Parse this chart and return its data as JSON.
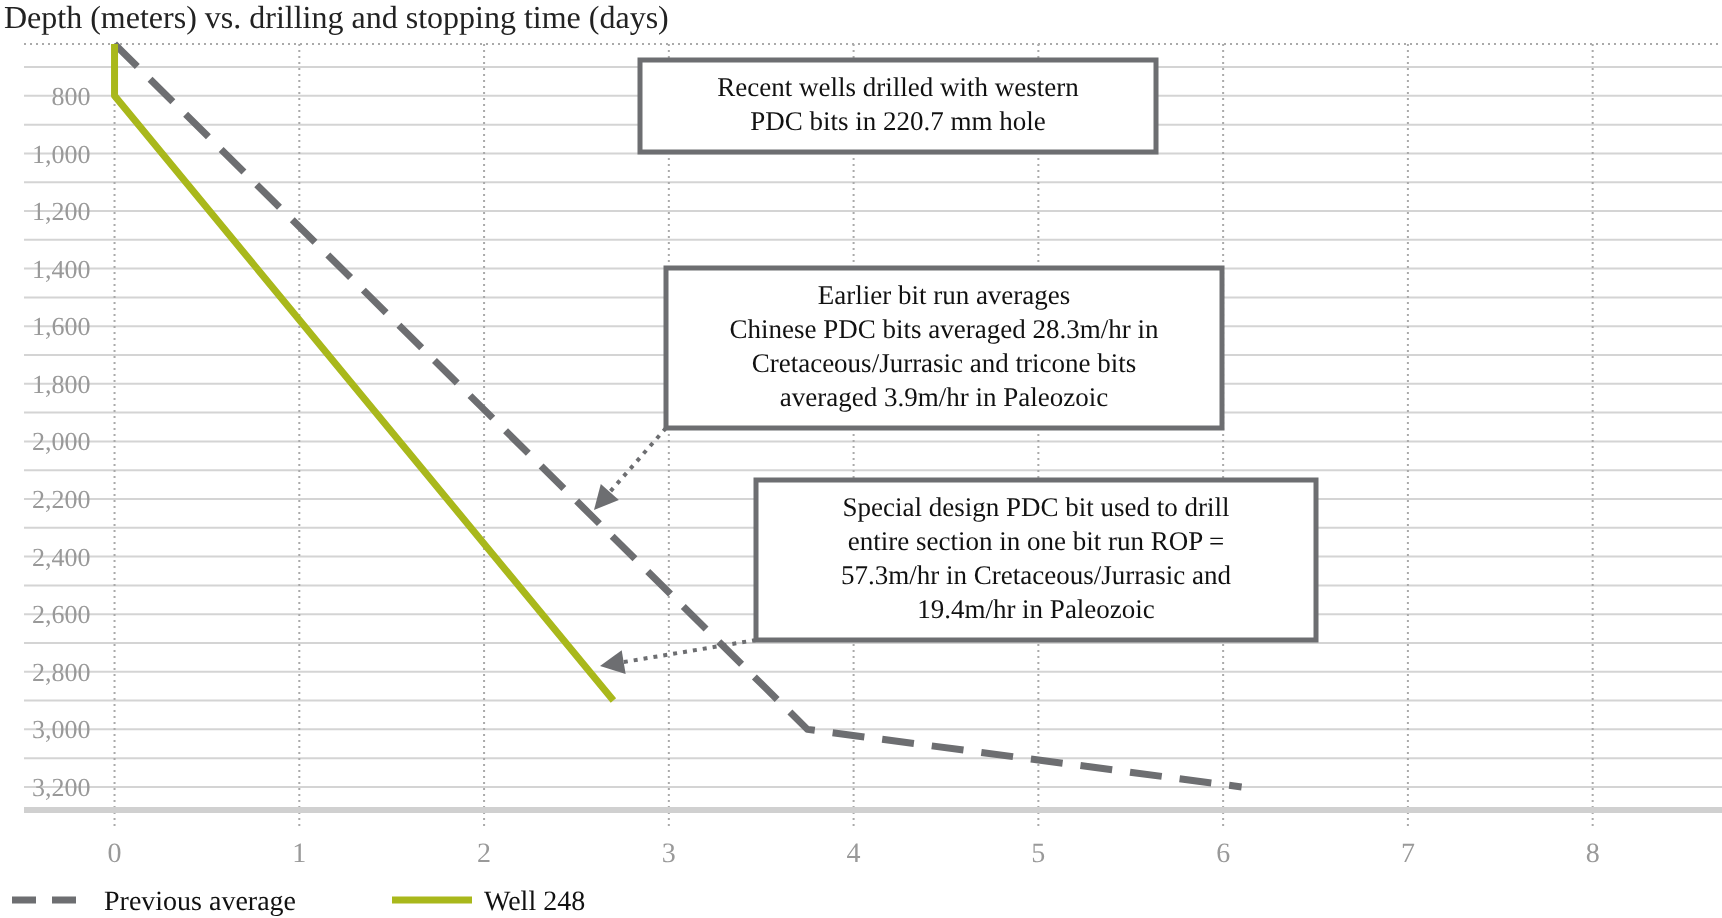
{
  "chart_data": {
    "type": "line",
    "title": "Depth (meters) vs. drilling and stopping time (days)",
    "xlim": [
      -0.49,
      8.7
    ],
    "xticks": [
      0,
      1,
      2,
      3,
      4,
      5,
      6,
      7,
      8
    ],
    "ylim": [
      3280,
      620
    ],
    "yticks": [
      {
        "value": 700,
        "label": null
      },
      800,
      {
        "value": 900,
        "label": null
      },
      {
        "value": 1000,
        "label": "1,000"
      },
      {
        "value": 1100,
        "label": null
      },
      {
        "value": 1200,
        "label": "1,200"
      },
      {
        "value": 1300,
        "label": null
      },
      {
        "value": 1400,
        "label": "1,400"
      },
      {
        "value": 1500,
        "label": null
      },
      {
        "value": 1600,
        "label": "1,600"
      },
      {
        "value": 1700,
        "label": null
      },
      {
        "value": 1800,
        "label": "1,800"
      },
      {
        "value": 1900,
        "label": null
      },
      {
        "value": 2000,
        "label": "2,000"
      },
      {
        "value": 2100,
        "label": null
      },
      {
        "value": 2200,
        "label": "2,200"
      },
      {
        "value": 2300,
        "label": null
      },
      {
        "value": 2400,
        "label": "2,400"
      },
      {
        "value": 2500,
        "label": null
      },
      {
        "value": 2600,
        "label": "2,600"
      },
      {
        "value": 2700,
        "label": null
      },
      {
        "value": 2800,
        "label": "2,800"
      },
      {
        "value": 2900,
        "label": null
      },
      {
        "value": 3000,
        "label": "3,000"
      },
      {
        "value": 3100,
        "label": null
      },
      {
        "value": 3200,
        "label": "3,200"
      }
    ],
    "grid": true,
    "legend": "bottom left",
    "series": [
      {
        "name": "Previous average",
        "color": "#6d6e71",
        "line_style": "dashed",
        "x": [
          0,
          3.75,
          6.1
        ],
        "values": [
          620,
          3000,
          3200
        ]
      },
      {
        "name": "Well 248",
        "color": "#a9b81b",
        "line_style": "solid",
        "x": [
          0,
          0,
          2.7
        ],
        "values": [
          620,
          800,
          2900
        ]
      }
    ],
    "annotations": [
      "Recent wells drilled with western\nPDC bits in 220.7 mm hole",
      "Earlier bit run averages\nChinese PDC bits averaged 28.3m/hr in\nCretaceous/Jurrasic and tricone bits\naveraged 3.9m/hr in Paleozoic",
      "Special design PDC bit used to drill\nentire section in one bit run ROP =\n57.3m/hr in Cretaceous/Jurrasic and\n19.4m/hr in Paleozoic"
    ]
  }
}
